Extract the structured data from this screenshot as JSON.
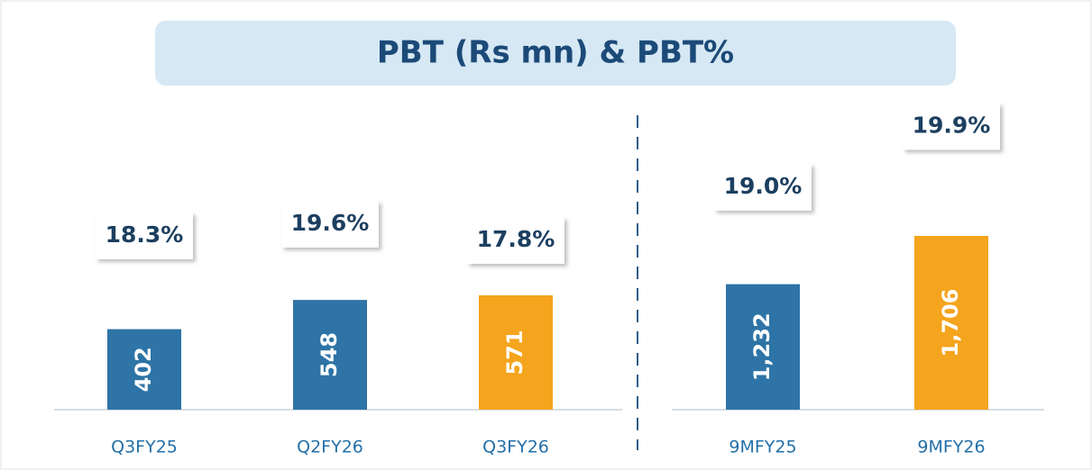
{
  "title": "PBT (Rs mn) & PBT%",
  "chart_data": [
    {
      "type": "bar",
      "categories": [
        "Q3FY25",
        "Q2FY26",
        "Q3FY26"
      ],
      "values": [
        402,
        548,
        571
      ],
      "colors": [
        "#2e74a6",
        "#2e74a6",
        "#f5a41d"
      ],
      "percent_values": [
        18.3,
        19.6,
        17.8
      ],
      "percent_labels": [
        "18.3%",
        "19.6%",
        "17.8%"
      ]
    },
    {
      "type": "bar",
      "categories": [
        "9MFY25",
        "9MFY26"
      ],
      "values": [
        1232,
        1706
      ],
      "value_labels": [
        "1,232",
        "1,706"
      ],
      "colors": [
        "#2e74a6",
        "#f5a41d"
      ],
      "percent_values": [
        19.0,
        19.9
      ],
      "percent_labels": [
        "19.0%",
        "19.9%"
      ]
    }
  ]
}
